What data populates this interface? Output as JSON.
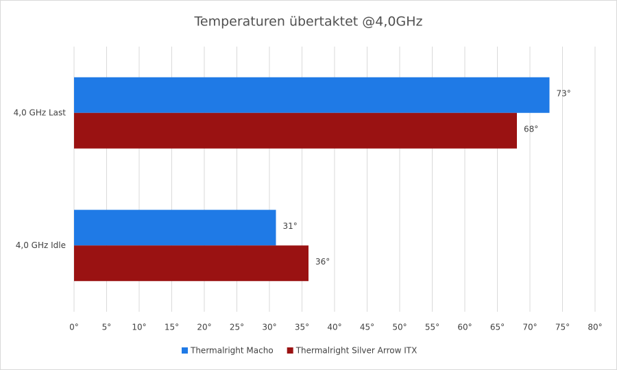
{
  "chart_data": {
    "type": "bar",
    "orientation": "horizontal",
    "title": "Temperaturen übertaktet @4,0GHz",
    "categories": [
      "4,0 GHz Last",
      "4,0 GHz Idle"
    ],
    "series": [
      {
        "name": "Thermalright Macho",
        "color": "#1f7ae6",
        "values": [
          73,
          31
        ],
        "value_labels": [
          "73°",
          "31°"
        ]
      },
      {
        "name": "Thermalright Silver Arrow ITX",
        "color": "#9a1212",
        "values": [
          68,
          36
        ],
        "value_labels": [
          "68°",
          "36°"
        ]
      }
    ],
    "xlim": [
      0,
      80
    ],
    "xticks": [
      {
        "value": 0,
        "label": "0°"
      },
      {
        "value": 5,
        "label": "5°"
      },
      {
        "value": 10,
        "label": "10°"
      },
      {
        "value": 15,
        "label": "15°"
      },
      {
        "value": 20,
        "label": "20°"
      },
      {
        "value": 25,
        "label": "25°"
      },
      {
        "value": 30,
        "label": "30°"
      },
      {
        "value": 35,
        "label": "35°"
      },
      {
        "value": 40,
        "label": "40°"
      },
      {
        "value": 45,
        "label": "45°"
      },
      {
        "value": 50,
        "label": "50°"
      },
      {
        "value": 55,
        "label": "55°"
      },
      {
        "value": 60,
        "label": "60°"
      },
      {
        "value": 65,
        "label": "65°"
      },
      {
        "value": 70,
        "label": "70°"
      },
      {
        "value": 75,
        "label": "75°"
      },
      {
        "value": 80,
        "label": "80°"
      }
    ],
    "grid": true,
    "legend": "bottom"
  }
}
